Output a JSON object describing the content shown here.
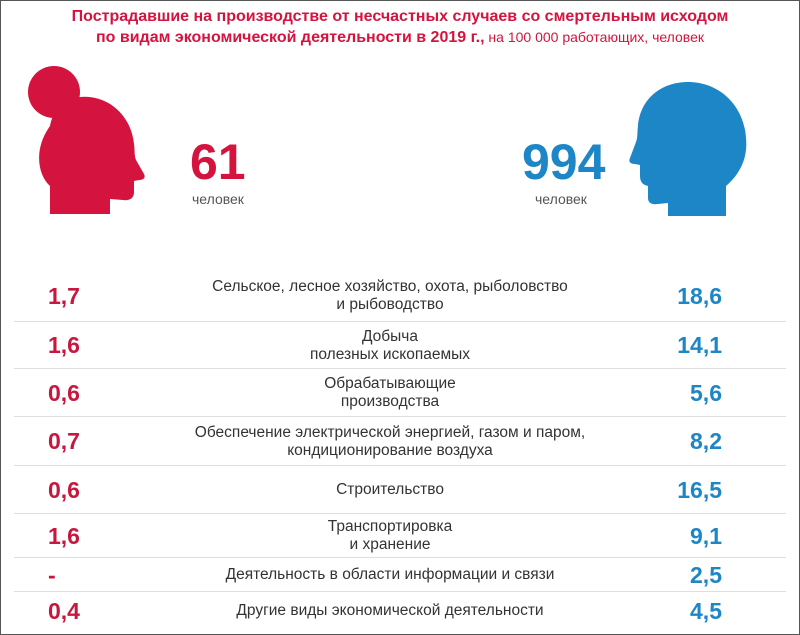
{
  "title": {
    "line1": "Пострадавшие на производстве от несчастных случаев со смертельным исходом",
    "line2_bold": "по видам экономической деятельности в 2019 г.,",
    "line2_sub": " на 100 000 работающих, человек"
  },
  "colors": {
    "women": "#d4143f",
    "men": "#1d86c6"
  },
  "icons": {
    "women": "woman-head-icon",
    "men": "man-head-icon"
  },
  "women_total": {
    "value": "61",
    "caption": "человек"
  },
  "men_total": {
    "value": "994",
    "caption": "человек"
  },
  "chart_data": {
    "type": "table",
    "categories": [
      "Сельское, лесное хозяйство, охота, рыболовство\nи рыбоводство",
      "Добыча\nполезных ископаемых",
      "Обрабатывающие\nпроизводства",
      "Обеспечение электрической энергией, газом и паром,\nкондиционирование воздуха",
      "Строительство",
      "Транспортировка\nи хранение",
      "Деятельность в области информации и связи",
      "Другие виды экономической деятельности"
    ],
    "series": [
      {
        "values": [
          "1,7",
          "1,6",
          "0,6",
          "0,7",
          "0,6",
          "1,6",
          "-",
          "0,4"
        ]
      },
      {
        "values": [
          "18,6",
          "14,1",
          "5,6",
          "8,2",
          "16,5",
          "9,1",
          "2,5",
          "4,5"
        ]
      }
    ]
  }
}
